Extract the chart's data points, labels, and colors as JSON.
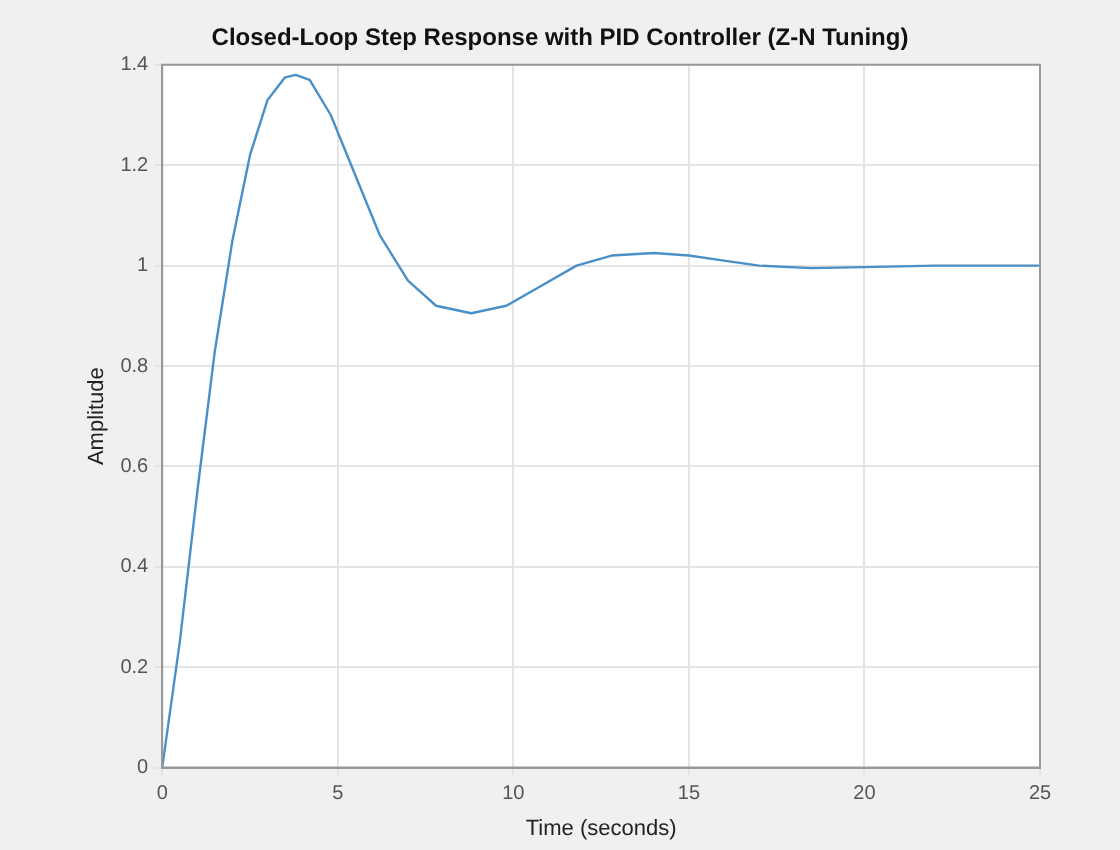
{
  "chart_data": {
    "type": "line",
    "title": "Closed-Loop Step Response with PID Controller (Z-N Tuning)",
    "xlabel": "Time (seconds)",
    "ylabel": "Amplitude",
    "x": [
      0,
      0.5,
      1,
      1.5,
      2,
      2.5,
      3,
      3.5,
      3.8,
      4.2,
      4.8,
      5.5,
      6.2,
      7,
      7.8,
      8.8,
      9.8,
      10.8,
      11.8,
      12.8,
      14,
      15,
      16,
      17,
      18.5,
      20,
      22,
      25
    ],
    "series": [
      {
        "color": "#4a90c8",
        "values": [
          0,
          0.25,
          0.55,
          0.83,
          1.05,
          1.22,
          1.33,
          1.375,
          1.38,
          1.37,
          1.3,
          1.18,
          1.06,
          0.97,
          0.92,
          0.905,
          0.92,
          0.96,
          1.0,
          1.02,
          1.025,
          1.02,
          1.01,
          1.0,
          0.995,
          0.997,
          1.0,
          1.0
        ]
      }
    ],
    "xlim": [
      0,
      25
    ],
    "xticks": [
      0,
      5,
      10,
      15,
      20,
      25
    ],
    "ylim": [
      0,
      1.4
    ],
    "yticks": [
      0,
      0.2,
      0.4,
      0.6,
      0.8,
      1,
      1.2,
      1.4
    ],
    "grid": true,
    "legend": false,
    "marker": "none",
    "line_style": "solid"
  }
}
